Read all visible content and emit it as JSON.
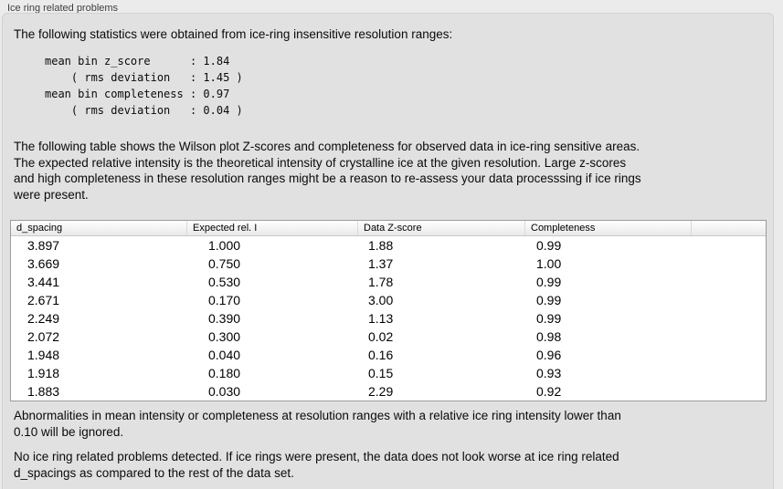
{
  "group": {
    "label": "Ice ring related problems",
    "intro": "The following statistics were obtained from ice-ring insensitive resolution ranges:",
    "stats_block": "mean bin z_score      : 1.84\n    ( rms deviation   : 1.45 )\nmean bin completeness : 0.97\n    ( rms deviation   : 0.04 )",
    "stats": {
      "mean_bin_z_score": "1.84",
      "z_score_rms_deviation": "1.45",
      "mean_bin_completeness": "0.97",
      "completeness_rms_deviation": "0.04"
    },
    "table_description": "The following table shows the Wilson plot Z-scores and completeness for observed data in ice-ring sensitive areas.\nThe expected relative intensity is the theoretical intensity of crystalline ice at the given resolution. Large z-scores\nand high completeness in these resolution ranges might be a reason to re-assess your data processsing if ice rings\nwere present.",
    "ignore_note": "Abnormalities in mean intensity or completeness at resolution ranges with a relative ice ring intensity lower than\n0.10 will be ignored.",
    "conclusion": "No ice ring related problems detected. If ice rings were present, the data does not look worse at ice ring related\nd_spacings as compared to the rest of the data set."
  },
  "table": {
    "columns": [
      "d_spacing",
      "Expected rel. I",
      "Data Z-score",
      "Completeness"
    ],
    "rows": [
      [
        "3.897",
        "1.000",
        "1.88",
        "0.99"
      ],
      [
        "3.669",
        "0.750",
        "1.37",
        "1.00"
      ],
      [
        "3.441",
        "0.530",
        "1.78",
        "0.99"
      ],
      [
        "2.671",
        "0.170",
        "3.00",
        "0.99"
      ],
      [
        "2.249",
        "0.390",
        "1.13",
        "0.99"
      ],
      [
        "2.072",
        "0.300",
        "0.02",
        "0.98"
      ],
      [
        "1.948",
        "0.040",
        "0.16",
        "0.96"
      ],
      [
        "1.918",
        "0.180",
        "0.15",
        "0.93"
      ],
      [
        "1.883",
        "0.030",
        "2.29",
        "0.92"
      ]
    ]
  },
  "colors": {
    "background": "#ebebeb",
    "panel_background": "#e1e1e1",
    "panel_border": "#d2d2d2",
    "table_border": "#9c9c9c",
    "table_background": "#ffffff",
    "text": "#0a0a0a"
  }
}
